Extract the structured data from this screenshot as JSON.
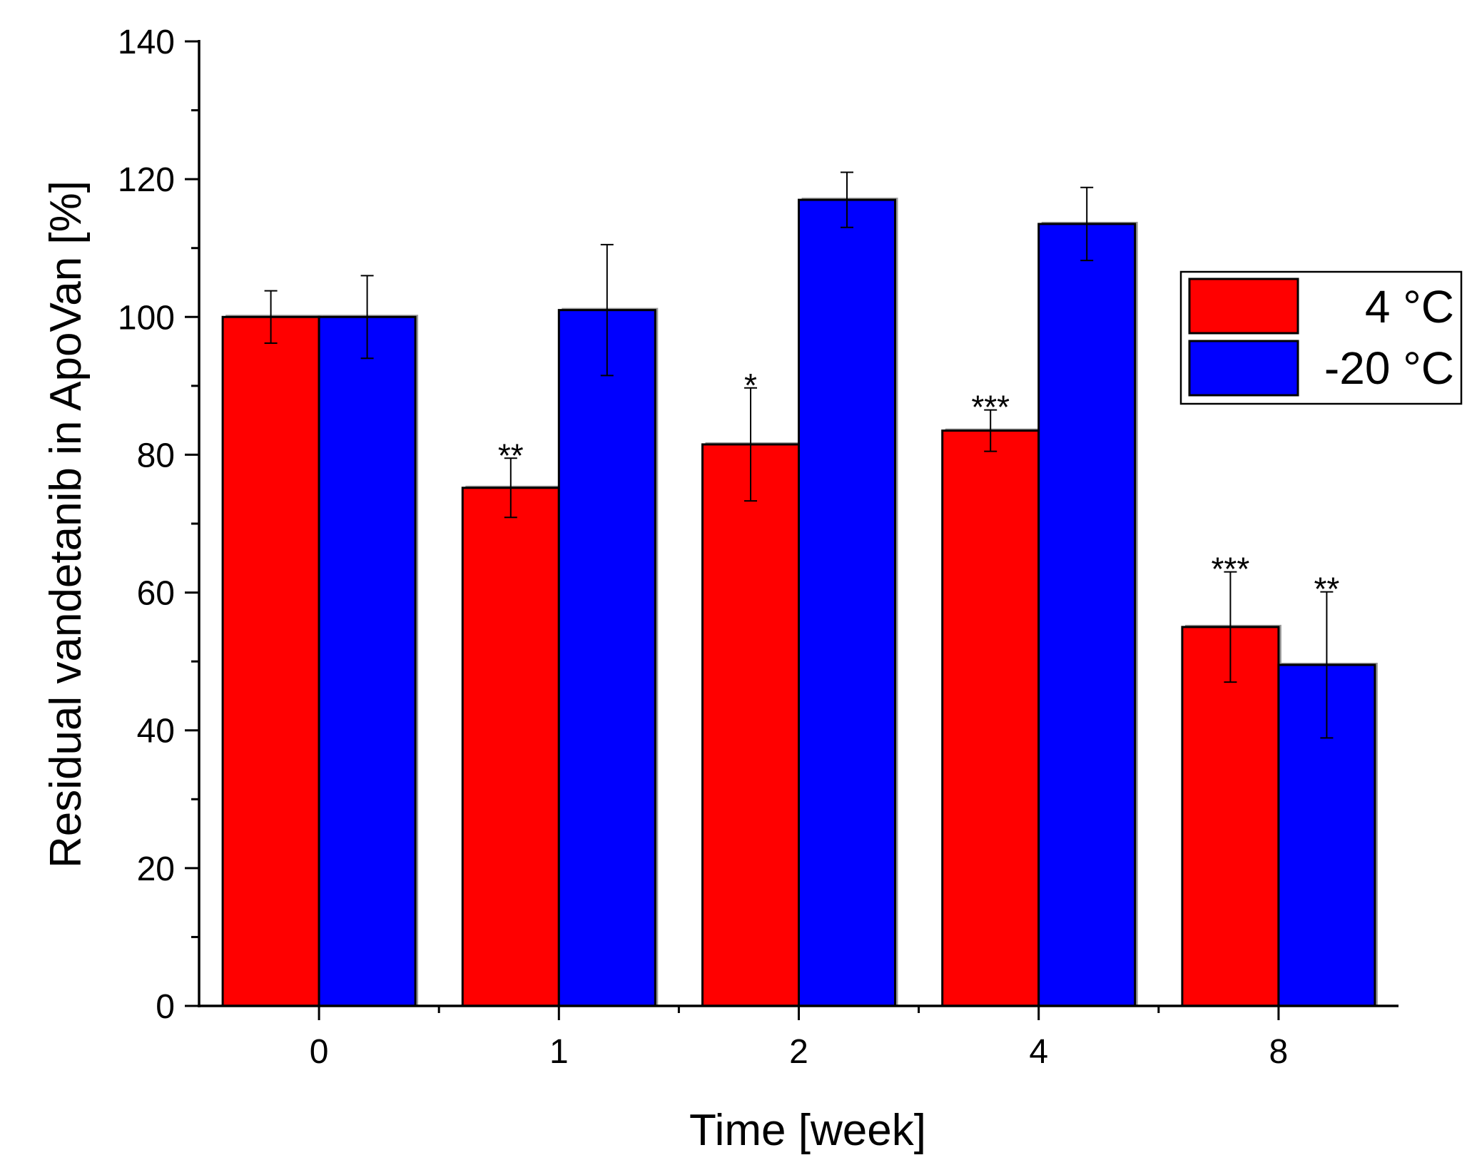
{
  "chart_data": {
    "type": "bar",
    "title": "",
    "xlabel": "Time [week]",
    "ylabel": "Residual vandetanib in ApoVan [%]",
    "categories": [
      "0",
      "1",
      "2",
      "4",
      "8"
    ],
    "ylim": [
      0,
      140
    ],
    "yticks": [
      "0",
      "20",
      "40",
      "60",
      "80",
      "100",
      "120",
      "140"
    ],
    "grid": false,
    "legend_position": "upper-right",
    "series": [
      {
        "name": "4 °C",
        "color": "#ff0000",
        "values": [
          100,
          75.2,
          81.5,
          83.5,
          55
        ],
        "errors": [
          3.8,
          4.3,
          8.2,
          3,
          8
        ],
        "significance": [
          "",
          "**",
          "*",
          "***",
          "***"
        ]
      },
      {
        "name": "-20 °C",
        "color": "#0000ff",
        "values": [
          100,
          101,
          117,
          113.5,
          49.5
        ],
        "errors": [
          6,
          9.5,
          4,
          5.3,
          10.6
        ],
        "significance": [
          "",
          "",
          "",
          "",
          "**"
        ]
      }
    ]
  }
}
